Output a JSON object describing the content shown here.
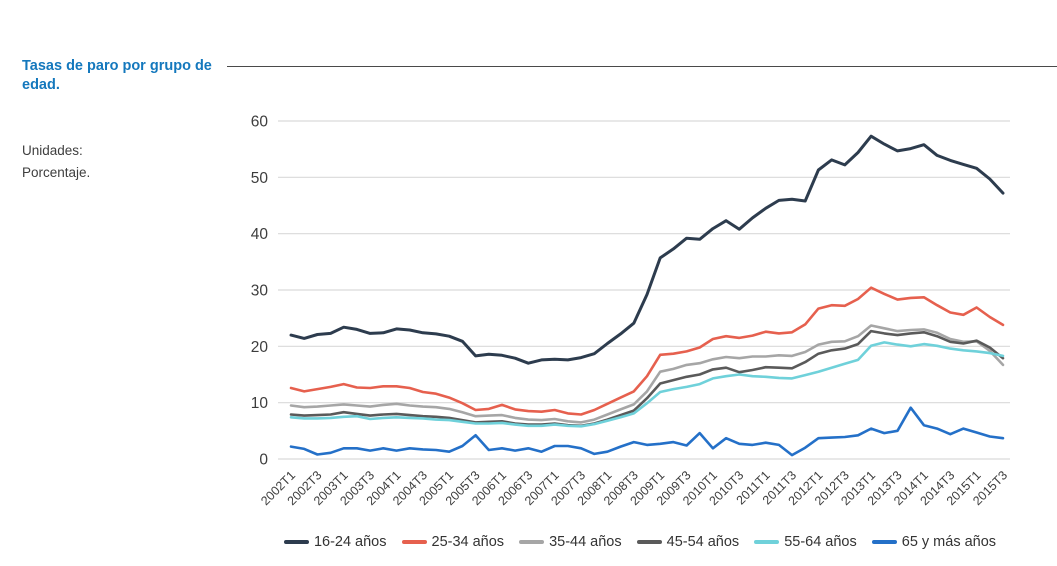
{
  "page": {
    "title": "Tasas de paro por grupo de edad.",
    "units_label": "Unidades:",
    "units_value": "Porcentaje."
  },
  "colors": {
    "title_blue": "#1478bd",
    "gridline": "#d9d9d9",
    "axis_text": "#3d3d3d",
    "top_rule": "#4a4a4a"
  },
  "chart_data": {
    "type": "line",
    "title": "",
    "xlabel": "",
    "ylabel": "",
    "ylim": [
      0,
      60
    ],
    "yticks": [
      0,
      10,
      20,
      30,
      40,
      50,
      60
    ],
    "grid": true,
    "legend_position": "bottom",
    "x_label_every": 2,
    "categories": [
      "2002T1",
      "2002T2",
      "2002T3",
      "2002T4",
      "2003T1",
      "2003T2",
      "2003T3",
      "2003T4",
      "2004T1",
      "2004T2",
      "2004T3",
      "2004T4",
      "2005T1",
      "2005T2",
      "2005T3",
      "2005T4",
      "2006T1",
      "2006T2",
      "2006T3",
      "2006T4",
      "2007T1",
      "2007T2",
      "2007T3",
      "2007T4",
      "2008T1",
      "2008T2",
      "2008T3",
      "2008T4",
      "2009T1",
      "2009T2",
      "2009T3",
      "2009T4",
      "2010T1",
      "2010T2",
      "2010T3",
      "2010T4",
      "2011T1",
      "2011T2",
      "2011T3",
      "2011T4",
      "2012T1",
      "2012T2",
      "2012T3",
      "2012T4",
      "2013T1",
      "2013T2",
      "2013T3",
      "2013T4",
      "2014T1",
      "2014T2",
      "2014T3",
      "2014T4",
      "2015T1",
      "2015T2",
      "2015T3"
    ],
    "series": [
      {
        "name": "16-24 años",
        "color": "#2d3c4e",
        "width": 3,
        "values": [
          22.0,
          21.4,
          22.1,
          22.3,
          23.4,
          23.0,
          22.3,
          22.4,
          23.1,
          22.9,
          22.4,
          22.2,
          21.8,
          20.9,
          18.3,
          18.6,
          18.4,
          17.9,
          17.0,
          17.6,
          17.7,
          17.6,
          18.0,
          18.7,
          20.5,
          22.2,
          24.1,
          29.2,
          35.7,
          37.3,
          39.2,
          39.0,
          40.9,
          42.3,
          40.8,
          42.8,
          44.5,
          45.9,
          46.1,
          45.8,
          51.3,
          53.1,
          52.2,
          54.4,
          57.3,
          55.9,
          54.7,
          55.1,
          55.8,
          53.9,
          53.0,
          52.3,
          51.6,
          49.7,
          47.2
        ]
      },
      {
        "name": "25-34 años",
        "color": "#e6604e",
        "width": 2.6,
        "values": [
          12.6,
          12.0,
          12.4,
          12.8,
          13.3,
          12.7,
          12.6,
          12.9,
          12.9,
          12.6,
          11.9,
          11.6,
          10.9,
          9.9,
          8.7,
          8.9,
          9.6,
          8.8,
          8.5,
          8.4,
          8.7,
          8.1,
          7.9,
          8.7,
          9.8,
          10.9,
          12.0,
          14.7,
          18.5,
          18.7,
          19.1,
          19.8,
          21.3,
          21.8,
          21.5,
          21.9,
          22.6,
          22.3,
          22.5,
          23.9,
          26.7,
          27.3,
          27.2,
          28.4,
          30.4,
          29.3,
          28.3,
          28.6,
          28.7,
          27.3,
          26.0,
          25.6,
          26.9,
          25.2,
          23.8
        ]
      },
      {
        "name": "35-44 años",
        "color": "#a6a6a6",
        "width": 2.6,
        "values": [
          9.5,
          9.2,
          9.3,
          9.5,
          9.7,
          9.5,
          9.3,
          9.6,
          9.8,
          9.5,
          9.3,
          9.2,
          8.9,
          8.3,
          7.6,
          7.7,
          7.8,
          7.3,
          7.0,
          6.9,
          7.1,
          6.7,
          6.5,
          7.0,
          7.9,
          8.8,
          9.7,
          12.0,
          15.5,
          16.0,
          16.7,
          17.0,
          17.7,
          18.1,
          17.9,
          18.2,
          18.2,
          18.4,
          18.3,
          19.0,
          20.3,
          20.8,
          20.9,
          21.8,
          23.7,
          23.2,
          22.7,
          22.9,
          23.0,
          22.4,
          21.3,
          20.8,
          20.9,
          19.2,
          16.7
        ]
      },
      {
        "name": "45-54 años",
        "color": "#5a5a5a",
        "width": 2.6,
        "values": [
          7.9,
          7.7,
          7.8,
          7.9,
          8.3,
          8.0,
          7.7,
          7.9,
          8.0,
          7.8,
          7.6,
          7.5,
          7.3,
          6.9,
          6.5,
          6.6,
          6.7,
          6.3,
          6.1,
          6.1,
          6.3,
          6.0,
          5.9,
          6.3,
          7.0,
          7.8,
          8.6,
          10.8,
          13.4,
          14.0,
          14.6,
          15.0,
          15.9,
          16.2,
          15.4,
          15.8,
          16.3,
          16.2,
          16.1,
          17.2,
          18.7,
          19.3,
          19.6,
          20.4,
          22.7,
          22.3,
          22.0,
          22.3,
          22.5,
          21.8,
          20.8,
          20.5,
          21.0,
          19.8,
          17.9
        ]
      },
      {
        "name": "55-64 años",
        "color": "#6fd1da",
        "width": 2.6,
        "values": [
          7.4,
          7.2,
          7.2,
          7.3,
          7.5,
          7.6,
          7.1,
          7.3,
          7.4,
          7.3,
          7.2,
          7.0,
          6.9,
          6.6,
          6.3,
          6.3,
          6.4,
          6.1,
          5.9,
          5.9,
          6.1,
          5.9,
          5.8,
          6.2,
          6.8,
          7.4,
          8.1,
          9.9,
          11.9,
          12.4,
          12.8,
          13.3,
          14.3,
          14.7,
          15.0,
          14.7,
          14.6,
          14.4,
          14.3,
          14.9,
          15.5,
          16.2,
          16.9,
          17.6,
          20.1,
          20.7,
          20.3,
          20.0,
          20.4,
          20.1,
          19.6,
          19.3,
          19.1,
          18.8,
          18.3
        ]
      },
      {
        "name": "65 y más años",
        "color": "#2470c8",
        "width": 2.6,
        "values": [
          2.2,
          1.8,
          0.8,
          1.1,
          1.9,
          1.9,
          1.5,
          1.9,
          1.5,
          1.9,
          1.7,
          1.6,
          1.3,
          2.3,
          4.2,
          1.6,
          1.9,
          1.5,
          1.9,
          1.3,
          2.3,
          2.3,
          1.9,
          0.9,
          1.3,
          2.2,
          3.0,
          2.5,
          2.7,
          3.0,
          2.4,
          4.6,
          1.9,
          3.7,
          2.7,
          2.5,
          2.9,
          2.5,
          0.7,
          2.0,
          3.7,
          3.8,
          3.9,
          4.2,
          5.4,
          4.6,
          5.0,
          9.1,
          6.0,
          5.4,
          4.4,
          5.4,
          4.7,
          4.0,
          3.7
        ]
      }
    ]
  }
}
